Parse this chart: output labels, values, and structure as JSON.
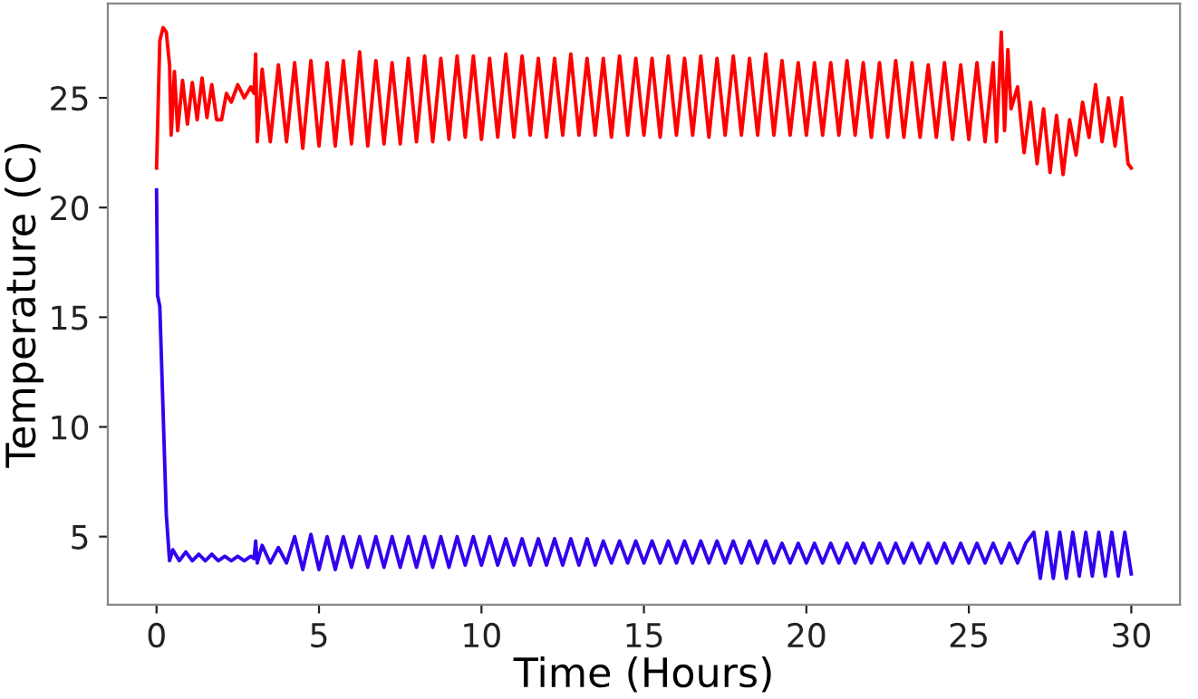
{
  "chart_data": {
    "type": "line",
    "xlabel": "Time (Hours)",
    "ylabel": "Temperature (C)",
    "xlim": [
      -1.5,
      31.5
    ],
    "ylim": [
      1.9,
      29.3
    ],
    "xticks": [
      0,
      5,
      10,
      15,
      20,
      25,
      30
    ],
    "yticks": [
      5,
      10,
      15,
      20,
      25
    ],
    "grid": false,
    "legend": false,
    "marker": "none",
    "line_style": "solid",
    "series": [
      {
        "color": "#ff0000",
        "x": [
          0,
          0.1,
          0.2,
          0.3,
          0.4,
          0.45,
          0.55,
          0.65,
          0.8,
          0.95,
          1.1,
          1.25,
          1.4,
          1.55,
          1.7,
          1.85,
          2.0,
          2.15,
          2.3,
          2.5,
          2.7,
          2.9,
          3.0,
          3.05,
          3.1,
          3.25,
          3.5,
          3.75,
          4.0,
          4.25,
          4.5,
          4.75,
          5.0,
          5.25,
          5.5,
          5.75,
          6.0,
          6.25,
          6.5,
          6.75,
          7.0,
          7.25,
          7.5,
          7.75,
          8.0,
          8.25,
          8.5,
          8.75,
          9.0,
          9.25,
          9.5,
          9.75,
          10.0,
          10.25,
          10.5,
          10.75,
          11.0,
          11.25,
          11.5,
          11.75,
          12.0,
          12.25,
          12.5,
          12.75,
          13.0,
          13.25,
          13.5,
          13.75,
          14.0,
          14.25,
          14.5,
          14.75,
          15.0,
          15.25,
          15.5,
          15.75,
          16.0,
          16.25,
          16.5,
          16.75,
          17.0,
          17.25,
          17.5,
          17.75,
          18.0,
          18.25,
          18.5,
          18.75,
          19.0,
          19.25,
          19.5,
          19.75,
          20.0,
          20.25,
          20.5,
          20.75,
          21.0,
          21.25,
          21.5,
          21.75,
          22.0,
          22.25,
          22.5,
          22.75,
          23.0,
          23.25,
          23.5,
          23.75,
          24.0,
          24.25,
          24.5,
          24.75,
          25.0,
          25.25,
          25.5,
          25.75,
          25.85,
          26.0,
          26.1,
          26.2,
          26.3,
          26.5,
          26.7,
          26.9,
          27.1,
          27.3,
          27.5,
          27.7,
          27.9,
          28.1,
          28.3,
          28.5,
          28.7,
          28.9,
          29.1,
          29.3,
          29.5,
          29.7,
          29.9,
          30.0
        ],
        "values": [
          21.8,
          27.6,
          28.2,
          28.0,
          26.5,
          23.3,
          26.2,
          23.5,
          25.8,
          23.8,
          25.7,
          24.0,
          25.9,
          24.1,
          25.6,
          24.0,
          24.0,
          25.2,
          24.8,
          25.6,
          25.0,
          25.5,
          25.2,
          27.0,
          23.0,
          26.3,
          23.0,
          26.5,
          23.0,
          26.6,
          22.7,
          26.7,
          22.8,
          26.6,
          22.8,
          26.7,
          22.9,
          27.1,
          22.8,
          26.7,
          22.9,
          26.6,
          22.9,
          26.8,
          23.0,
          26.9,
          23.0,
          26.8,
          23.1,
          26.9,
          23.2,
          26.9,
          23.1,
          26.8,
          23.2,
          27.0,
          23.2,
          26.9,
          23.3,
          26.8,
          23.2,
          26.8,
          23.3,
          27.0,
          23.3,
          26.8,
          23.3,
          26.8,
          23.2,
          26.9,
          23.3,
          26.8,
          23.3,
          26.8,
          23.2,
          26.9,
          23.3,
          26.8,
          23.3,
          26.9,
          23.2,
          26.8,
          23.3,
          26.9,
          23.3,
          26.8,
          23.3,
          27.0,
          23.3,
          26.7,
          23.3,
          26.6,
          23.3,
          26.6,
          23.3,
          26.6,
          23.3,
          26.7,
          23.3,
          26.6,
          23.2,
          26.6,
          23.2,
          26.7,
          23.2,
          26.6,
          23.2,
          26.5,
          23.2,
          26.6,
          23.1,
          26.5,
          23.1,
          26.6,
          23.0,
          26.6,
          23.0,
          28.0,
          23.5,
          27.2,
          24.5,
          25.5,
          22.5,
          24.8,
          22.0,
          24.5,
          21.6,
          24.2,
          21.5,
          24.0,
          22.4,
          24.8,
          23.2,
          25.6,
          23.0,
          25.0,
          22.8,
          25.0,
          22.0,
          21.8
        ]
      },
      {
        "color": "#3300ee",
        "x": [
          0,
          0.03,
          0.1,
          0.3,
          0.4,
          0.5,
          0.7,
          0.9,
          1.1,
          1.3,
          1.5,
          1.7,
          1.9,
          2.1,
          2.3,
          2.5,
          2.7,
          2.9,
          3.0,
          3.05,
          3.1,
          3.25,
          3.5,
          3.75,
          4.0,
          4.25,
          4.5,
          4.75,
          5.0,
          5.25,
          5.5,
          5.75,
          6.0,
          6.25,
          6.5,
          6.75,
          7.0,
          7.25,
          7.5,
          7.75,
          8.0,
          8.25,
          8.5,
          8.75,
          9.0,
          9.25,
          9.5,
          9.75,
          10.0,
          10.25,
          10.5,
          10.75,
          11.0,
          11.25,
          11.5,
          11.75,
          12.0,
          12.25,
          12.5,
          12.75,
          13.0,
          13.25,
          13.5,
          13.75,
          14.0,
          14.25,
          14.5,
          14.75,
          15.0,
          15.25,
          15.5,
          15.75,
          16.0,
          16.25,
          16.5,
          16.75,
          17.0,
          17.25,
          17.5,
          17.75,
          18.0,
          18.25,
          18.5,
          18.75,
          19.0,
          19.25,
          19.5,
          19.75,
          20.0,
          20.25,
          20.5,
          20.75,
          21.0,
          21.25,
          21.5,
          21.75,
          22.0,
          22.25,
          22.5,
          22.75,
          23.0,
          23.25,
          23.5,
          23.75,
          24.0,
          24.25,
          24.5,
          24.75,
          25.0,
          25.25,
          25.5,
          25.75,
          26.0,
          26.25,
          26.5,
          26.75,
          27.0,
          27.2,
          27.4,
          27.6,
          27.8,
          28.0,
          28.2,
          28.4,
          28.6,
          28.8,
          29.0,
          29.2,
          29.4,
          29.6,
          29.8,
          30.0
        ],
        "values": [
          20.8,
          16.0,
          15.5,
          6.0,
          3.9,
          4.4,
          3.9,
          4.3,
          3.9,
          4.2,
          3.9,
          4.2,
          3.9,
          4.1,
          3.9,
          4.1,
          3.9,
          4.1,
          4.0,
          4.8,
          3.8,
          4.6,
          3.8,
          4.5,
          3.8,
          5.0,
          3.5,
          5.1,
          3.5,
          5.0,
          3.5,
          5.0,
          3.6,
          5.0,
          3.6,
          5.0,
          3.6,
          5.0,
          3.6,
          5.0,
          3.6,
          5.0,
          3.6,
          5.0,
          3.6,
          5.0,
          3.7,
          5.0,
          3.7,
          5.0,
          3.7,
          4.9,
          3.7,
          4.9,
          3.7,
          4.9,
          3.7,
          4.9,
          3.7,
          4.9,
          3.7,
          4.9,
          3.7,
          4.8,
          3.8,
          4.8,
          3.8,
          4.8,
          3.8,
          4.8,
          3.8,
          4.8,
          3.8,
          4.8,
          3.8,
          4.8,
          3.8,
          4.8,
          3.8,
          4.8,
          3.8,
          4.8,
          3.8,
          4.8,
          3.8,
          4.7,
          3.8,
          4.7,
          3.8,
          4.7,
          3.8,
          4.7,
          3.8,
          4.7,
          3.8,
          4.7,
          3.8,
          4.7,
          3.8,
          4.7,
          3.8,
          4.7,
          3.8,
          4.7,
          3.8,
          4.7,
          3.8,
          4.7,
          3.8,
          4.7,
          3.8,
          4.7,
          3.8,
          4.7,
          3.8,
          4.7,
          5.2,
          3.1,
          5.2,
          3.1,
          5.2,
          3.1,
          5.2,
          3.2,
          5.2,
          3.2,
          5.2,
          3.2,
          5.2,
          3.2,
          5.2,
          3.3
        ]
      }
    ]
  }
}
